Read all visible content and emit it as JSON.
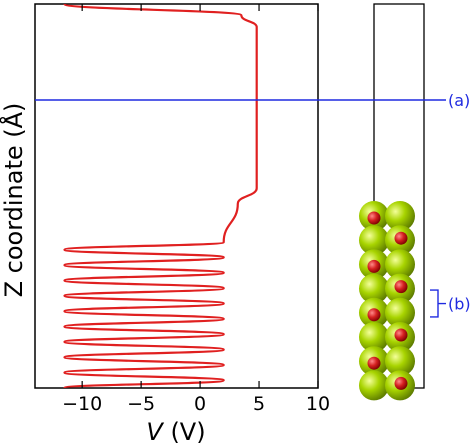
{
  "chart_data": {
    "type": "line",
    "xlabel_var": "V",
    "xlabel_unit": " (V)",
    "ylabel": "Z coordinate (Å)",
    "xlim": [
      -14,
      10
    ],
    "x_ticks": [
      -10,
      -5,
      0,
      5,
      10
    ],
    "x_tick_labels": [
      "−10",
      "−5",
      "0",
      "5",
      "10"
    ],
    "y_ticks": [],
    "grid": false,
    "series": [
      {
        "color": "#e02020",
        "points": [
          [
            -11.5,
            0.0
          ],
          [
            2.0,
            0.02
          ],
          [
            -11.5,
            0.04
          ],
          [
            2.0,
            0.06
          ],
          [
            -11.5,
            0.08
          ],
          [
            2.0,
            0.1
          ],
          [
            -11.5,
            0.12
          ],
          [
            2.0,
            0.14
          ],
          [
            -11.5,
            0.16
          ],
          [
            2.0,
            0.18
          ],
          [
            -11.5,
            0.2
          ],
          [
            2.0,
            0.22
          ],
          [
            -11.5,
            0.24
          ],
          [
            2.0,
            0.26
          ],
          [
            -11.5,
            0.28
          ],
          [
            2.0,
            0.3
          ],
          [
            -11.5,
            0.32
          ],
          [
            2.0,
            0.34
          ],
          [
            -11.5,
            0.36
          ],
          [
            2.0,
            0.38
          ],
          [
            3.2,
            0.48
          ],
          [
            4.8,
            0.52
          ],
          [
            4.8,
            0.94
          ],
          [
            3.5,
            0.97
          ],
          [
            -11.5,
            1.0
          ]
        ]
      }
    ],
    "annotations": [
      {
        "label": "(a)",
        "y_level": 0.75,
        "color": "#1f2ae0"
      },
      {
        "label": "(b)",
        "y_from": 0.185,
        "y_to": 0.255,
        "color": "#1f2ae0"
      }
    ]
  },
  "atoms": {
    "large_color": "#a8d400",
    "small_color": "#d42020"
  }
}
